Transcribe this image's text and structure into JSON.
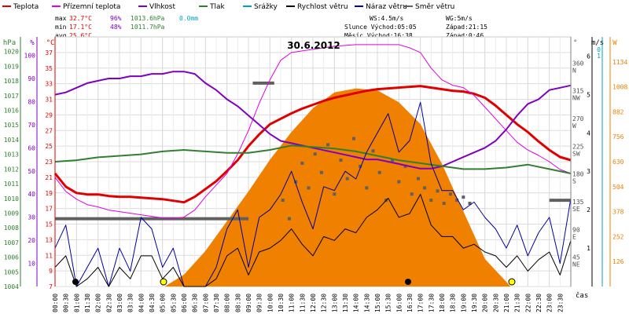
{
  "title": "30.6.2012",
  "legend": [
    {
      "label": "Teplota",
      "color": "#e00000"
    },
    {
      "label": "Přízemní teplota",
      "color": "#e000e0"
    },
    {
      "label": "Vlhkost",
      "color": "#8000c0"
    },
    {
      "label": "Tlak",
      "color": "#308030"
    },
    {
      "label": "Srážky",
      "color": "#00a0c0"
    },
    {
      "label": "Rychlost větru",
      "color": "#000000"
    },
    {
      "label": "Náraz větru",
      "color": "#0000a0"
    },
    {
      "label": "Směr větru",
      "color": "#606060"
    }
  ],
  "stats": {
    "max_label": "max",
    "max_temp": "32.7°C",
    "max_hum": "96%",
    "max_press": "1013.6hPa",
    "rain": "0.0mm",
    "min_label": "min",
    "min_temp": "17.1°C",
    "min_hum": "48%",
    "min_press": "1011.7hPa",
    "avg_label": "avg",
    "avg_temp": "25.6°C",
    "ws": "WS:4.5m/s",
    "wg": "WG:5m/s",
    "sun": "Slunce Východ:05:05",
    "sun_set": "Západ:21:15",
    "moon": "Měsíc Východ:16:38",
    "moon_set": "Západ:0:46"
  },
  "axis_titles": {
    "pressure": "hPa",
    "humidity": "%",
    "temperature": "°C",
    "direction": "°",
    "wind": "m/s",
    "solar": "W",
    "time": "čas"
  },
  "chart_data": {
    "type": "line",
    "title": "30.6.2012",
    "pressure_ticks": [
      1004,
      1005,
      1006,
      1007,
      1008,
      1009,
      1010,
      1011,
      1012,
      1013,
      1014,
      1015,
      1016,
      1017,
      1018,
      1019,
      1020
    ],
    "humidity_ticks": [
      10,
      20,
      30,
      40,
      50,
      60,
      70,
      80,
      90,
      100
    ],
    "temperature_ticks": [
      7,
      9,
      11,
      13,
      15,
      17,
      19,
      21,
      23,
      25,
      27,
      29,
      31,
      33,
      35,
      37
    ],
    "direction_ticks": [
      {
        "value": 360,
        "dir": "N"
      },
      {
        "value": 315,
        "dir": "NW"
      },
      {
        "value": 270,
        "dir": "W"
      },
      {
        "value": 225,
        "dir": "SW"
      },
      {
        "value": 180,
        "dir": "S"
      },
      {
        "value": 135,
        "dir": "SE"
      },
      {
        "value": 90,
        "dir": "E"
      },
      {
        "value": 45,
        "dir": "NE"
      }
    ],
    "wind_ticks": [
      0,
      1,
      2,
      3,
      4,
      5,
      6
    ],
    "rain_ticks": [
      0,
      1
    ],
    "solar_ticks": [
      0,
      126,
      252,
      378,
      504,
      630,
      756,
      882,
      1008,
      1134
    ],
    "time_ticks": [
      "00:00",
      "00:30",
      "01:00",
      "01:30",
      "02:00",
      "02:30",
      "03:00",
      "03:30",
      "04:00",
      "04:30",
      "05:00",
      "05:30",
      "06:00",
      "06:30",
      "07:00",
      "07:30",
      "08:00",
      "08:30",
      "09:00",
      "09:30",
      "10:00",
      "10:30",
      "11:00",
      "11:30",
      "12:00",
      "12:30",
      "13:00",
      "13:30",
      "14:00",
      "14:30",
      "15:00",
      "15:30",
      "16:00",
      "16:30",
      "17:00",
      "17:30",
      "18:00",
      "18:30",
      "19:00",
      "19:30",
      "20:00",
      "20:30",
      "21:00",
      "21:30",
      "22:00",
      "22:30",
      "23:00",
      "23:30"
    ],
    "series": [
      {
        "name": "Teplota",
        "color": "#e00000",
        "width": 3,
        "t": [
          0,
          0.5,
          1,
          1.5,
          2,
          2.5,
          3,
          3.5,
          4,
          4.5,
          5,
          5.5,
          6,
          6.5,
          7,
          7.5,
          8,
          8.5,
          9,
          9.5,
          10,
          10.5,
          11,
          11.5,
          12,
          12.5,
          13,
          13.5,
          14,
          14.5,
          15,
          15.5,
          16,
          16.5,
          17,
          17.5,
          18,
          18.5,
          19,
          19.5,
          20,
          20.5,
          21,
          21.5,
          22,
          22.5,
          23,
          23.5,
          24
        ],
        "v": [
          21.5,
          19.8,
          19,
          18.8,
          18.8,
          18.6,
          18.5,
          18.5,
          18.4,
          18.3,
          18.2,
          18,
          17.8,
          18.5,
          19.5,
          20.5,
          21.8,
          23.2,
          25,
          26.5,
          27.8,
          28.5,
          29.2,
          29.8,
          30.3,
          30.8,
          31.2,
          31.5,
          31.8,
          32.1,
          32.3,
          32.4,
          32.5,
          32.6,
          32.7,
          32.5,
          32.3,
          32.1,
          32,
          31.7,
          31.2,
          30.2,
          29,
          27.8,
          26.8,
          25.6,
          24.5,
          23.6,
          23.2
        ]
      },
      {
        "name": "Přízemní teplota",
        "color": "#e000e0",
        "width": 1,
        "t": [
          0,
          0.5,
          1,
          1.5,
          2,
          2.5,
          3,
          3.5,
          4,
          4.5,
          5,
          5.5,
          6,
          6.5,
          7,
          7.5,
          8,
          8.5,
          9,
          9.5,
          10,
          10.5,
          11,
          11.5,
          12,
          12.5,
          13,
          13.5,
          14,
          14.5,
          15,
          15.5,
          16,
          16.5,
          17,
          17.5,
          18,
          18.5,
          19,
          19.5,
          20,
          20.5,
          21,
          21.5,
          22,
          22.5,
          23,
          23.5,
          24
        ],
        "v": [
          21,
          19.2,
          18.2,
          17.5,
          17.2,
          16.8,
          16.6,
          16.4,
          16.2,
          16,
          15.8,
          15.7,
          15.9,
          16.8,
          18.5,
          20,
          21.5,
          24,
          27,
          30.5,
          33.5,
          36,
          37,
          37.2,
          37.4,
          37.6,
          37.8,
          37.9,
          38,
          38,
          38,
          38,
          38,
          37.6,
          37,
          35,
          33.5,
          32.8,
          32.5,
          31.5,
          30,
          28.5,
          27,
          25.5,
          24.5,
          23.8,
          23,
          22,
          21.5
        ]
      },
      {
        "name": "Vlhkost",
        "color": "#8000c0",
        "width": 2,
        "t": [
          0,
          0.5,
          1,
          1.5,
          2,
          2.5,
          3,
          3.5,
          4,
          4.5,
          5,
          5.5,
          6,
          6.5,
          7,
          7.5,
          8,
          8.5,
          9,
          9.5,
          10,
          10.5,
          11,
          11.5,
          12,
          12.5,
          13,
          13.5,
          14,
          14.5,
          15,
          15.5,
          16,
          16.5,
          17,
          17.5,
          18,
          18.5,
          19,
          19.5,
          20,
          20.5,
          21,
          21.5,
          22,
          22.5,
          23,
          23.5,
          24
        ],
        "v": [
          83,
          84,
          86,
          88,
          89,
          90,
          90,
          91,
          91,
          92,
          92,
          93,
          93,
          92,
          88,
          85,
          81,
          78,
          74,
          70,
          66,
          63,
          62,
          61,
          60,
          59,
          58,
          57,
          56,
          55,
          55,
          54,
          53,
          52,
          51,
          51,
          52,
          54,
          56,
          58,
          60,
          63,
          68,
          74,
          79,
          81,
          85,
          86,
          87
        ]
      },
      {
        "name": "Tlak",
        "color": "#308030",
        "width": 2,
        "t": [
          0,
          1,
          2,
          3,
          4,
          5,
          6,
          7,
          8,
          9,
          10,
          11,
          12,
          13,
          14,
          15,
          16,
          17,
          18,
          19,
          20,
          21,
          22,
          23,
          24
        ],
        "v": [
          1012.5,
          1012.6,
          1012.8,
          1012.9,
          1013.0,
          1013.2,
          1013.3,
          1013.2,
          1013.1,
          1013.1,
          1013.3,
          1013.6,
          1013.5,
          1013.4,
          1013.2,
          1012.9,
          1012.6,
          1012.4,
          1012.2,
          1012.0,
          1012.0,
          1012.1,
          1012.3,
          1012.0,
          1011.7
        ]
      },
      {
        "name": "Náraz větru",
        "color": "#0000a0",
        "width": 1,
        "t": [
          0,
          0.5,
          1,
          1.5,
          2,
          2.5,
          3,
          3.5,
          4,
          4.5,
          5,
          5.5,
          6,
          6.5,
          7,
          7.5,
          8,
          8.5,
          9,
          9.5,
          10,
          10.5,
          11,
          11.5,
          12,
          12.5,
          13,
          13.5,
          14,
          14.5,
          15,
          15.5,
          16,
          16.5,
          17,
          17.5,
          18,
          18.5,
          19,
          19.5,
          20,
          20.5,
          21,
          21.5,
          22,
          22.5,
          23,
          23.5,
          24
        ],
        "v": [
          1,
          1.6,
          0,
          0.5,
          1,
          0,
          1,
          0.4,
          1.8,
          1.5,
          0.5,
          1,
          0,
          0,
          0,
          0.5,
          1.5,
          2,
          0.5,
          1.8,
          2,
          2.4,
          3,
          2.2,
          1.5,
          2.6,
          2.5,
          3,
          2.8,
          3.5,
          4,
          4.5,
          3.5,
          3.8,
          4.8,
          3.2,
          2.5,
          2.5,
          2,
          2.2,
          1.8,
          1.5,
          1,
          1.6,
          0.8,
          1.4,
          1.8,
          0.6,
          2.3
        ]
      },
      {
        "name": "Rychlost větru",
        "color": "#000000",
        "width": 1,
        "t": [
          0,
          0.5,
          1,
          1.5,
          2,
          2.5,
          3,
          3.5,
          4,
          4.5,
          5,
          5.5,
          6,
          6.5,
          7,
          7.5,
          8,
          8.5,
          9,
          9.5,
          10,
          10.5,
          11,
          11.5,
          12,
          12.5,
          13,
          13.5,
          14,
          14.5,
          15,
          15.5,
          16,
          16.5,
          17,
          17.5,
          18,
          18.5,
          19,
          19.5,
          20,
          20.5,
          21,
          21.5,
          22,
          22.5,
          23,
          23.5,
          24
        ],
        "v": [
          0.5,
          0.8,
          0,
          0.2,
          0.5,
          0,
          0.5,
          0.2,
          0.8,
          0.8,
          0.2,
          0.5,
          0,
          0,
          0,
          0.2,
          0.8,
          1,
          0.3,
          0.9,
          1,
          1.2,
          1.5,
          1.1,
          0.8,
          1.3,
          1.2,
          1.5,
          1.4,
          1.8,
          2,
          2.3,
          1.8,
          1.9,
          2.4,
          1.6,
          1.3,
          1.3,
          1,
          1.1,
          0.9,
          0.8,
          0.5,
          0.8,
          0.4,
          0.7,
          0.9,
          0.3,
          1.2
        ]
      }
    ],
    "solar": {
      "name": "Sluneční záření",
      "color": "#f08000",
      "t": [
        5.1,
        6,
        7,
        8,
        9,
        10,
        11,
        12,
        13,
        14,
        15,
        16,
        17,
        18,
        19,
        20,
        21.2
      ],
      "v": [
        0,
        60,
        180,
        330,
        480,
        640,
        780,
        900,
        980,
        1000,
        990,
        930,
        820,
        620,
        380,
        140,
        0
      ]
    },
    "wind_direction": {
      "name": "Směr větru",
      "color": "#606060",
      "segments": [
        {
          "t0": 0,
          "t1": 9,
          "v": 110
        },
        {
          "t0": 9.2,
          "t1": 10.2,
          "v": 330
        },
        {
          "t0": 23,
          "t1": 24,
          "v": 140
        }
      ],
      "points": [
        {
          "t": 10.6,
          "v": 140
        },
        {
          "t": 10.9,
          "v": 110
        },
        {
          "t": 11.2,
          "v": 170
        },
        {
          "t": 11.5,
          "v": 200
        },
        {
          "t": 11.8,
          "v": 160
        },
        {
          "t": 12.1,
          "v": 215
        },
        {
          "t": 12.4,
          "v": 185
        },
        {
          "t": 12.7,
          "v": 230
        },
        {
          "t": 13.0,
          "v": 150
        },
        {
          "t": 13.3,
          "v": 205
        },
        {
          "t": 13.6,
          "v": 175
        },
        {
          "t": 13.9,
          "v": 240
        },
        {
          "t": 14.2,
          "v": 195
        },
        {
          "t": 14.5,
          "v": 160
        },
        {
          "t": 14.8,
          "v": 220
        },
        {
          "t": 15.1,
          "v": 185
        },
        {
          "t": 15.4,
          "v": 140
        },
        {
          "t": 15.7,
          "v": 205
        },
        {
          "t": 16.0,
          "v": 170
        },
        {
          "t": 16.3,
          "v": 195
        },
        {
          "t": 16.6,
          "v": 150
        },
        {
          "t": 16.9,
          "v": 175
        },
        {
          "t": 17.2,
          "v": 160
        },
        {
          "t": 17.5,
          "v": 140
        },
        {
          "t": 17.8,
          "v": 155
        },
        {
          "t": 18.1,
          "v": 135
        },
        {
          "t": 18.4,
          "v": 150
        },
        {
          "t": 18.7,
          "v": 140
        },
        {
          "t": 19.0,
          "v": 145
        },
        {
          "t": 19.3,
          "v": 135
        }
      ]
    }
  }
}
